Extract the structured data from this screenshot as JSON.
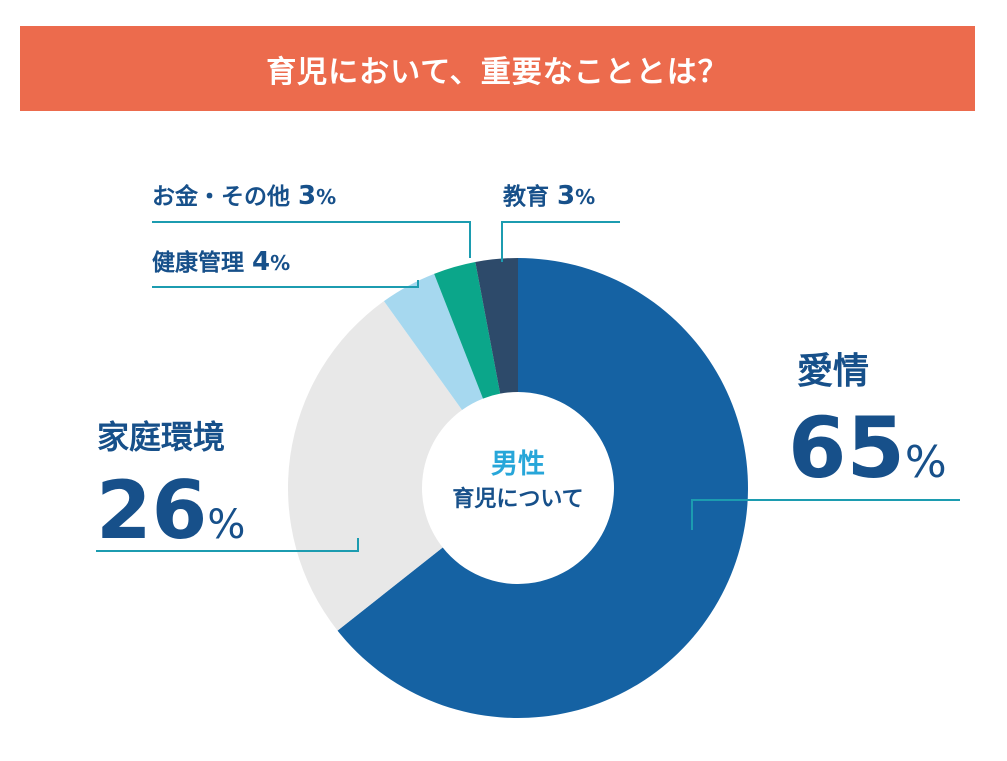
{
  "header": {
    "title": "育児において、重要なこととは？"
  },
  "center": {
    "line1": "男性",
    "line2": "育児について"
  },
  "chart_data": {
    "type": "pie",
    "title": "育児において、重要なこととは？",
    "unit": "%",
    "slices": [
      {
        "label": "愛情",
        "value": 65,
        "color": "#1562a3"
      },
      {
        "label": "家庭環境",
        "value": 26,
        "color": "#e8e8e8"
      },
      {
        "label": "健康管理",
        "value": 4,
        "color": "#a6d8ef"
      },
      {
        "label": "お金・その他",
        "value": 3,
        "color": "#0ba68a"
      },
      {
        "label": "教育",
        "value": 3,
        "color": "#2d4a6a"
      }
    ]
  }
}
